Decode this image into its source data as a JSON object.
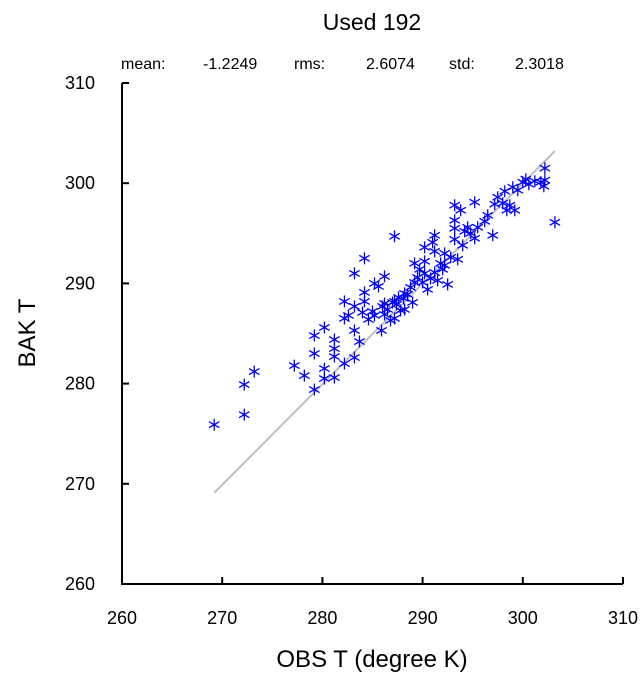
{
  "chart_data": {
    "type": "scatter",
    "title": "Used  192",
    "stats": {
      "mean_label": "mean:",
      "mean_value": "-1.2249",
      "rms_label": "rms:",
      "rms_value": "2.6074",
      "std_label": "std:",
      "std_value": "2.3018"
    },
    "xlabel": "OBS T  (degree K)",
    "ylabel": "BAK T",
    "xlim": [
      260,
      310
    ],
    "ylim": [
      260,
      310
    ],
    "xticks": [
      260,
      270,
      280,
      290,
      300,
      310
    ],
    "yticks": [
      260,
      270,
      280,
      290,
      300,
      310
    ],
    "grid": false,
    "marker": "asterisk",
    "colors": {
      "points": "#0000ff",
      "reference_line": "#bfbfbf",
      "axes": "#000000"
    },
    "reference_line": {
      "x": [
        269.2,
        303.2
      ],
      "y": [
        269.1,
        303.2
      ]
    },
    "points": [
      [
        269.2,
        275.9
      ],
      [
        272.2,
        276.9
      ],
      [
        272.2,
        279.9
      ],
      [
        273.2,
        281.2
      ],
      [
        277.2,
        281.8
      ],
      [
        278.2,
        280.8
      ],
      [
        279.2,
        279.4
      ],
      [
        279.2,
        283.0
      ],
      [
        279.2,
        284.8
      ],
      [
        280.2,
        285.6
      ],
      [
        280.2,
        281.5
      ],
      [
        280.2,
        280.5
      ],
      [
        281.2,
        280.6
      ],
      [
        281.2,
        282.7
      ],
      [
        281.2,
        283.5
      ],
      [
        281.2,
        284.4
      ],
      [
        282.2,
        282.0
      ],
      [
        282.2,
        286.5
      ],
      [
        282.2,
        288.2
      ],
      [
        282.6,
        286.8
      ],
      [
        283.2,
        282.6
      ],
      [
        283.2,
        285.3
      ],
      [
        283.2,
        287.7
      ],
      [
        283.2,
        291.0
      ],
      [
        283.7,
        284.2
      ],
      [
        284.0,
        287.1
      ],
      [
        284.2,
        288.2
      ],
      [
        284.2,
        289.1
      ],
      [
        284.2,
        292.5
      ],
      [
        284.6,
        286.4
      ],
      [
        285.0,
        287.2
      ],
      [
        285.2,
        290.0
      ],
      [
        285.2,
        286.8
      ],
      [
        285.6,
        289.7
      ],
      [
        285.9,
        285.3
      ],
      [
        286.0,
        287.7
      ],
      [
        286.2,
        288.0
      ],
      [
        286.2,
        286.9
      ],
      [
        286.2,
        290.7
      ],
      [
        286.5,
        287.4
      ],
      [
        286.8,
        286.3
      ],
      [
        287.0,
        288.1
      ],
      [
        287.2,
        288.2
      ],
      [
        287.2,
        286.5
      ],
      [
        287.2,
        294.7
      ],
      [
        287.4,
        287.9
      ],
      [
        287.6,
        288.6
      ],
      [
        287.8,
        287.3
      ],
      [
        288.1,
        288.5
      ],
      [
        288.2,
        287.4
      ],
      [
        288.2,
        289.0
      ],
      [
        288.5,
        288.9
      ],
      [
        288.8,
        289.6
      ],
      [
        289.0,
        288.1
      ],
      [
        289.2,
        290.1
      ],
      [
        289.2,
        292.0
      ],
      [
        289.5,
        290.6
      ],
      [
        289.7,
        291.4
      ],
      [
        290.0,
        290.1
      ],
      [
        290.2,
        291.0
      ],
      [
        290.2,
        292.2
      ],
      [
        290.2,
        293.6
      ],
      [
        290.5,
        289.4
      ],
      [
        290.8,
        290.5
      ],
      [
        291.0,
        294.1
      ],
      [
        291.2,
        291.1
      ],
      [
        291.2,
        293.2
      ],
      [
        291.2,
        294.8
      ],
      [
        291.5,
        290.3
      ],
      [
        291.8,
        292.0
      ],
      [
        292.0,
        291.4
      ],
      [
        292.2,
        293.0
      ],
      [
        292.2,
        291.8
      ],
      [
        292.5,
        289.9
      ],
      [
        292.8,
        292.6
      ],
      [
        293.2,
        294.4
      ],
      [
        293.2,
        295.5
      ],
      [
        293.2,
        296.3
      ],
      [
        293.2,
        297.8
      ],
      [
        293.5,
        292.4
      ],
      [
        293.8,
        297.3
      ],
      [
        294.0,
        293.8
      ],
      [
        294.2,
        295.2
      ],
      [
        294.5,
        295.6
      ],
      [
        294.8,
        295.0
      ],
      [
        295.2,
        294.5
      ],
      [
        295.2,
        298.1
      ],
      [
        295.5,
        295.6
      ],
      [
        296.2,
        296.2
      ],
      [
        296.5,
        296.8
      ],
      [
        297.0,
        294.8
      ],
      [
        297.2,
        297.9
      ],
      [
        297.5,
        298.6
      ],
      [
        298.0,
        298.0
      ],
      [
        298.2,
        299.2
      ],
      [
        298.4,
        297.3
      ],
      [
        298.7,
        297.8
      ],
      [
        299.0,
        299.6
      ],
      [
        299.2,
        297.3
      ],
      [
        299.5,
        299.3
      ],
      [
        300.0,
        300.1
      ],
      [
        300.3,
        300.4
      ],
      [
        300.6,
        299.9
      ],
      [
        301.2,
        300.2
      ],
      [
        301.8,
        300.1
      ],
      [
        302.1,
        299.7
      ],
      [
        302.2,
        301.5
      ],
      [
        302.2,
        300.3
      ],
      [
        303.2,
        296.1
      ]
    ]
  }
}
